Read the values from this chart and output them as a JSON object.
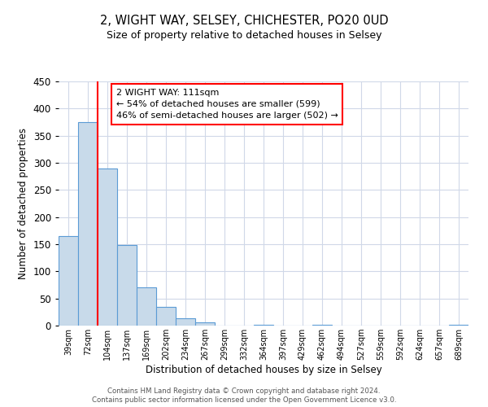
{
  "title": "2, WIGHT WAY, SELSEY, CHICHESTER, PO20 0UD",
  "subtitle": "Size of property relative to detached houses in Selsey",
  "xlabel": "Distribution of detached houses by size in Selsey",
  "ylabel": "Number of detached properties",
  "bin_labels": [
    "39sqm",
    "72sqm",
    "104sqm",
    "137sqm",
    "169sqm",
    "202sqm",
    "234sqm",
    "267sqm",
    "299sqm",
    "332sqm",
    "364sqm",
    "397sqm",
    "429sqm",
    "462sqm",
    "494sqm",
    "527sqm",
    "559sqm",
    "592sqm",
    "624sqm",
    "657sqm",
    "689sqm"
  ],
  "bar_heights": [
    165,
    375,
    290,
    148,
    70,
    35,
    14,
    6,
    0,
    0,
    2,
    0,
    0,
    2,
    0,
    0,
    0,
    0,
    0,
    0,
    2
  ],
  "bar_color": "#c8daea",
  "bar_edgecolor": "#5b9bd5",
  "ylim": [
    0,
    450
  ],
  "yticks": [
    0,
    50,
    100,
    150,
    200,
    250,
    300,
    350,
    400,
    450
  ],
  "red_line_x": 2,
  "annotation_title": "2 WIGHT WAY: 111sqm",
  "annotation_line1": "← 54% of detached houses are smaller (599)",
  "annotation_line2": "46% of semi-detached houses are larger (502) →",
  "footer_line1": "Contains HM Land Registry data © Crown copyright and database right 2024.",
  "footer_line2": "Contains public sector information licensed under the Open Government Licence v3.0.",
  "background_color": "#ffffff",
  "grid_color": "#d0d8e8"
}
